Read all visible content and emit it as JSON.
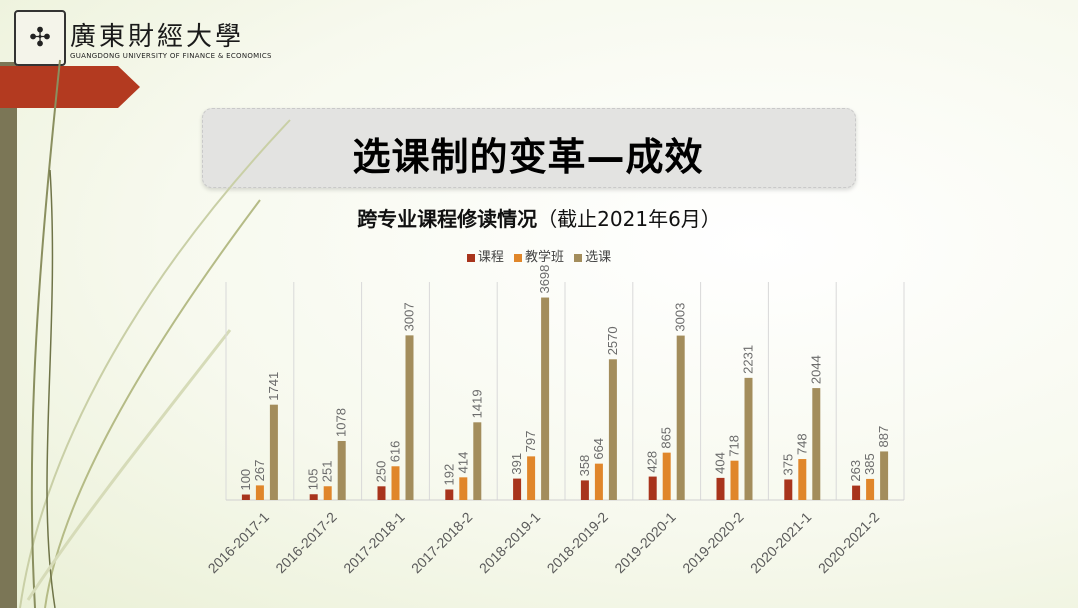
{
  "logo": {
    "name_cn": "廣東財經大學",
    "name_en": "GUANGDONG UNIVERSITY OF FINANCE & ECONOMICS"
  },
  "slide": {
    "title": "选课制的变革—成效",
    "chart_title_bold": "跨专业课程修读情况",
    "chart_title_note": "（截止2021年6月）"
  },
  "chart_data": {
    "type": "bar",
    "categories": [
      "2016-2017-1",
      "2016-2017-2",
      "2017-2018-1",
      "2017-2018-2",
      "2018-2019-1",
      "2018-2019-2",
      "2019-2020-1",
      "2019-2020-2",
      "2020-2021-1",
      "2020-2021-2"
    ],
    "series": [
      {
        "name": "课程",
        "color": "#a8341c",
        "values": [
          100,
          105,
          250,
          192,
          391,
          358,
          428,
          404,
          375,
          263
        ]
      },
      {
        "name": "教学班",
        "color": "#e0862a",
        "values": [
          267,
          251,
          616,
          414,
          797,
          664,
          865,
          718,
          748,
          385
        ]
      },
      {
        "name": "选课",
        "color": "#a38d5c",
        "values": [
          1741,
          1078,
          3007,
          1419,
          3698,
          2570,
          3003,
          2231,
          2044,
          887
        ]
      }
    ],
    "title": "跨专业课程修读情况（截止2021年6月）",
    "xlabel": "",
    "ylabel": "",
    "ylim": [
      0,
      4000
    ],
    "grid": "vertical",
    "legend": "top-center"
  }
}
